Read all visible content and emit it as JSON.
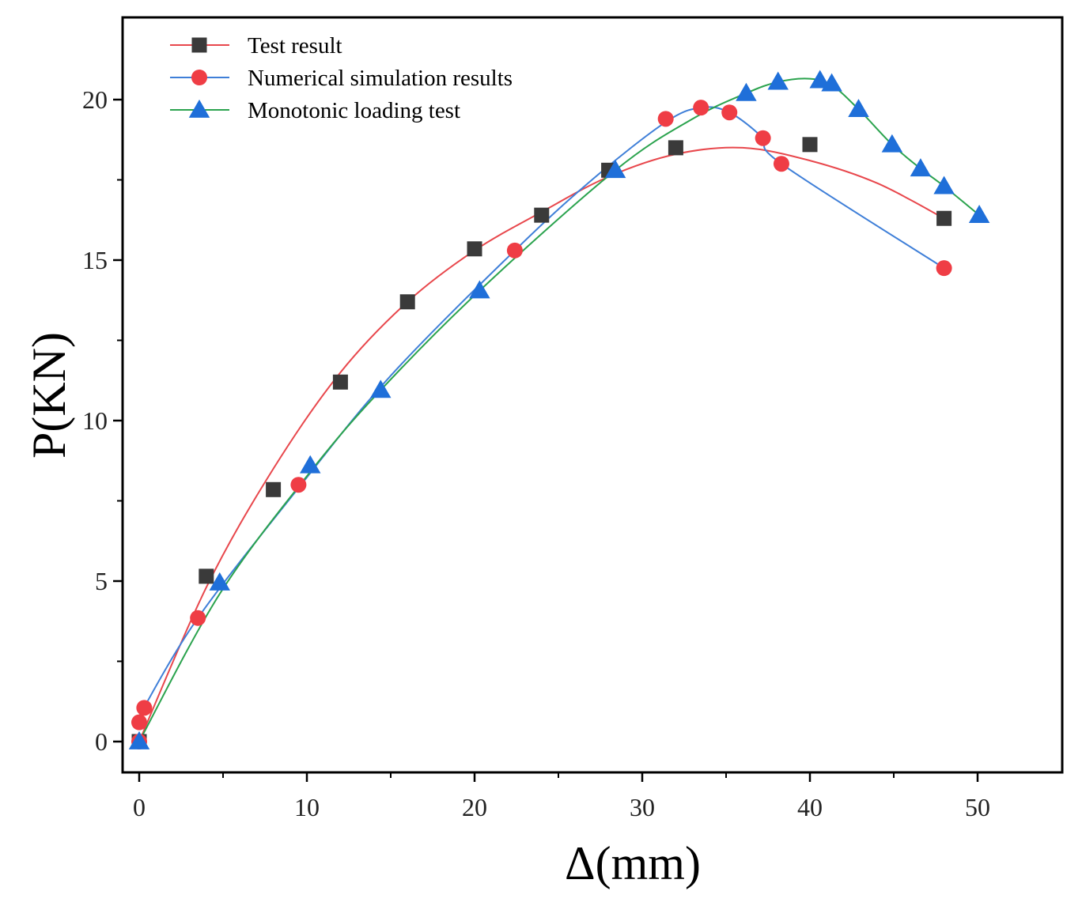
{
  "chart_data": {
    "type": "line",
    "title": "",
    "xlabel": "Δ(mm)",
    "ylabel": "P(KN)",
    "xlim": [
      -1,
      55
    ],
    "ylim": [
      -1,
      22.5
    ],
    "xticks": [
      0,
      10,
      20,
      30,
      40,
      50
    ],
    "yticks": [
      0,
      5,
      10,
      15,
      20
    ],
    "grid": false,
    "legend_position": "top-left",
    "series": [
      {
        "name": "Test  result",
        "marker": "square",
        "color": "#e8474c",
        "marker_color": "#3a3a3a",
        "x": [
          0,
          4,
          8,
          12,
          16,
          20,
          24,
          28,
          32,
          40,
          48
        ],
        "y": [
          0,
          5.15,
          7.85,
          11.2,
          13.7,
          15.35,
          16.4,
          17.8,
          18.5,
          18.6,
          16.3
        ],
        "curve_x": [
          0,
          4,
          8,
          12,
          16,
          20,
          24,
          28,
          32,
          36,
          40,
          44,
          48
        ],
        "curve_y": [
          0,
          4.8,
          8.5,
          11.5,
          13.7,
          15.3,
          16.5,
          17.6,
          18.3,
          18.5,
          18.1,
          17.4,
          16.3
        ]
      },
      {
        "name": "Numerical simulation results",
        "marker": "circle",
        "color": "#3f7fd8",
        "marker_color": "#ef3d45",
        "x": [
          0,
          0,
          0.3,
          3.5,
          9.5,
          22.4,
          31.4,
          33.5,
          35.2,
          37.2,
          38.3,
          48
        ],
        "y": [
          0,
          0.6,
          1.05,
          3.85,
          8.0,
          15.3,
          19.4,
          19.75,
          19.6,
          18.8,
          18.0,
          14.75
        ],
        "curve_x": [
          0,
          3.5,
          9.5,
          15,
          22.4,
          27,
          31.4,
          33.5,
          35.2,
          37.2,
          38.3,
          48
        ],
        "curve_y": [
          0.8,
          3.85,
          7.9,
          11.4,
          15.3,
          17.5,
          19.3,
          19.75,
          19.6,
          18.8,
          18.0,
          14.75
        ]
      },
      {
        "name": "Monotonic loading test",
        "marker": "triangle",
        "color": "#2ba34e",
        "marker_color": "#1f6fd9",
        "x": [
          0,
          4.8,
          10.2,
          14.4,
          20.3,
          28.4,
          36.2,
          38.1,
          40.6,
          41.3,
          42.9,
          44.9,
          46.6,
          48,
          50.1
        ],
        "y": [
          0,
          4.95,
          8.6,
          10.95,
          14.05,
          17.8,
          20.2,
          20.55,
          20.6,
          20.5,
          19.7,
          18.6,
          17.85,
          17.3,
          16.4
        ],
        "curve_x": [
          0,
          4.8,
          10.2,
          14.4,
          20.3,
          28.4,
          33,
          36.2,
          38.1,
          40,
          41.3,
          42.9,
          44.9,
          46.6,
          48,
          50.1
        ],
        "curve_y": [
          0,
          4.6,
          8.4,
          10.95,
          14.05,
          17.8,
          19.4,
          20.2,
          20.55,
          20.65,
          20.45,
          19.7,
          18.6,
          17.85,
          17.3,
          16.4
        ]
      }
    ]
  }
}
